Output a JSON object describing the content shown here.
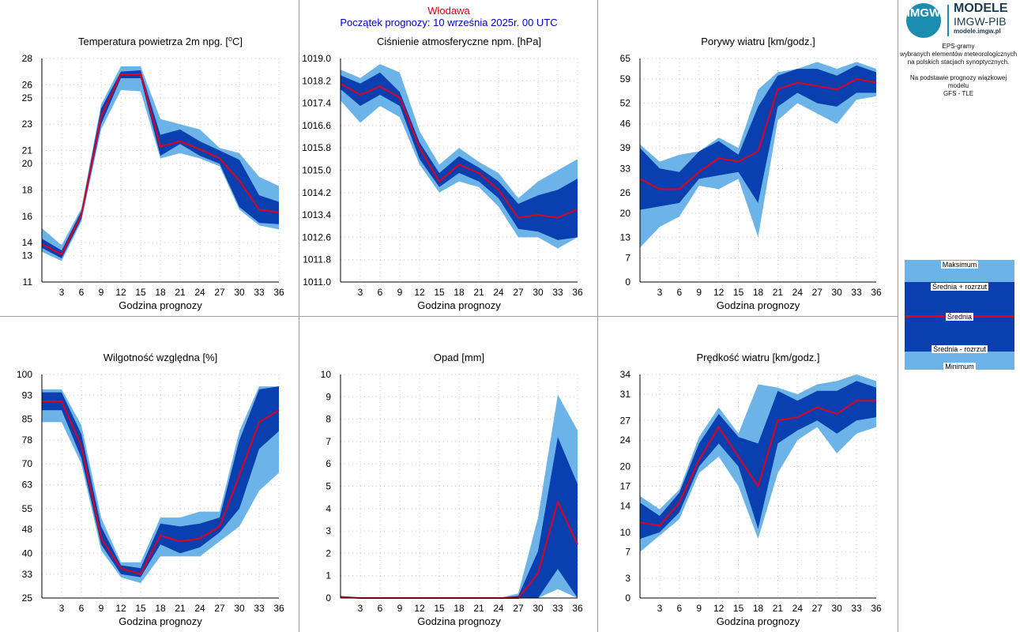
{
  "header": {
    "station": "Włodawa",
    "subtitle": "Początek prognozy: 10 września 2025r. 00 UTC"
  },
  "brand": {
    "logo_text": "IMGW",
    "title": "MODELE",
    "subtitle": "IMGW-PIB",
    "url": "modele.imgw.pl"
  },
  "description": {
    "line1": "EPS-gramy",
    "line2": "wybranych elementów meteorologicznych",
    "line3": "na polskich stacjach  synoptycznych.",
    "line4": "Na podstawie prognozy wiązkowej modelu",
    "line5": "GFS - TLE"
  },
  "legend": {
    "max": "Maksimum",
    "mean_plus": "Średnia + rozrzut",
    "mean": "Średnia",
    "mean_minus": "Średnia - rozrzut",
    "min": "Minimum"
  },
  "colors": {
    "outer_band": "#6cb4e8",
    "inner_band": "#0a3fb0",
    "mean_line": "#e0001b",
    "grid": "#c8c8c8"
  },
  "chart_data": [
    {
      "type": "area",
      "title": "Temperatura powietrza 2m npg. [oC]",
      "xlabel": "Godzina prognozy",
      "x": [
        0,
        3,
        6,
        9,
        12,
        15,
        18,
        21,
        24,
        27,
        30,
        33,
        36
      ],
      "xticks": [
        3,
        6,
        9,
        12,
        15,
        18,
        21,
        24,
        27,
        30,
        33,
        36
      ],
      "ylim": [
        11,
        28
      ],
      "yticks": [
        "11",
        "13",
        "14",
        "16",
        "18",
        "20",
        "21",
        "23",
        "25",
        "26",
        "28"
      ],
      "series": {
        "min": [
          13.3,
          12.6,
          15.6,
          22.6,
          25.6,
          25.5,
          20.4,
          20.8,
          20.4,
          19.8,
          16.5,
          15.3,
          15.0
        ],
        "mean_minus": [
          13.6,
          12.8,
          15.8,
          23.0,
          26.5,
          26.5,
          20.6,
          21.5,
          20.6,
          20.0,
          16.7,
          15.5,
          15.4
        ],
        "mean": [
          13.9,
          13.1,
          16.1,
          23.6,
          26.8,
          26.8,
          21.3,
          21.7,
          21.1,
          20.4,
          18.7,
          16.5,
          16.3
        ],
        "mean_plus": [
          14.3,
          13.4,
          16.4,
          24.2,
          27.0,
          27.1,
          22.2,
          22.6,
          21.7,
          21.0,
          20.3,
          17.6,
          17.1
        ],
        "max": [
          15.1,
          13.8,
          16.6,
          24.5,
          27.4,
          27.4,
          23.4,
          23.0,
          22.6,
          21.2,
          20.8,
          19.0,
          18.3
        ]
      }
    },
    {
      "type": "area",
      "title": "Ciśnienie atmosferyczne npm. [hPa]",
      "xlabel": "Godzina prognozy",
      "x": [
        0,
        3,
        6,
        9,
        12,
        15,
        18,
        21,
        24,
        27,
        30,
        33,
        36
      ],
      "xticks": [
        3,
        6,
        9,
        12,
        15,
        18,
        21,
        24,
        27,
        30,
        33,
        36
      ],
      "ylim": [
        1011.0,
        1019.0
      ],
      "yticks": [
        "1011.0",
        "1011.8",
        "1012.6",
        "1013.4",
        "1014.2",
        "1015.0",
        "1015.8",
        "1016.6",
        "1017.4",
        "1018.2",
        "1019.0"
      ],
      "series": {
        "min": [
          1017.5,
          1016.7,
          1017.3,
          1016.9,
          1015.2,
          1014.2,
          1014.6,
          1014.4,
          1013.7,
          1012.6,
          1012.6,
          1012.2,
          1012.6
        ],
        "mean_minus": [
          1017.9,
          1017.3,
          1017.7,
          1017.3,
          1015.4,
          1014.4,
          1014.9,
          1014.6,
          1014.0,
          1012.9,
          1012.8,
          1012.5,
          1012.6
        ],
        "mean": [
          1018.1,
          1017.7,
          1018.0,
          1017.6,
          1015.8,
          1014.6,
          1015.2,
          1014.9,
          1014.3,
          1013.3,
          1013.4,
          1013.3,
          1013.6
        ],
        "mean_plus": [
          1018.4,
          1018.1,
          1018.5,
          1017.8,
          1016.0,
          1014.9,
          1015.5,
          1015.1,
          1014.6,
          1013.8,
          1014.1,
          1014.3,
          1014.7
        ],
        "max": [
          1018.6,
          1018.3,
          1018.8,
          1018.5,
          1016.4,
          1015.2,
          1015.8,
          1015.3,
          1014.9,
          1014.0,
          1014.6,
          1015.0,
          1015.4
        ]
      }
    },
    {
      "type": "area",
      "title": "Porywy wiatru [km/godz.]",
      "xlabel": "Godzina prognozy",
      "x": [
        0,
        3,
        6,
        9,
        12,
        15,
        18,
        21,
        24,
        27,
        30,
        33,
        36
      ],
      "xticks": [
        3,
        6,
        9,
        12,
        15,
        18,
        21,
        24,
        27,
        30,
        33,
        36
      ],
      "ylim": [
        0,
        65
      ],
      "yticks": [
        "0",
        "7",
        "13",
        "20",
        "26",
        "33",
        "39",
        "46",
        "52",
        "59",
        "65"
      ],
      "series": {
        "min": [
          10,
          16,
          19,
          28,
          27,
          30,
          13,
          47,
          52,
          49,
          46,
          53,
          54
        ],
        "mean_minus": [
          21,
          22,
          23,
          30,
          31,
          32,
          23,
          51,
          55,
          52,
          51,
          55,
          55
        ],
        "mean": [
          30,
          27,
          27,
          32,
          36,
          35,
          38,
          56,
          58,
          57,
          56,
          59,
          58
        ],
        "mean_plus": [
          39,
          33,
          32,
          38,
          41,
          37,
          51,
          60,
          62,
          62,
          60,
          63,
          61
        ],
        "max": [
          40,
          35,
          37,
          38,
          42,
          39,
          56,
          61,
          62,
          64,
          62,
          64,
          62
        ]
      }
    },
    {
      "type": "area",
      "title": "Wilgotność względna [%]",
      "xlabel": "Godzina prognozy",
      "x": [
        0,
        3,
        6,
        9,
        12,
        15,
        18,
        21,
        24,
        27,
        30,
        33,
        36
      ],
      "xticks": [
        3,
        6,
        9,
        12,
        15,
        18,
        21,
        24,
        27,
        30,
        33,
        36
      ],
      "ylim": [
        25,
        100
      ],
      "yticks": [
        "25",
        "33",
        "40",
        "48",
        "55",
        "63",
        "70",
        "78",
        "85",
        "93",
        "100"
      ],
      "series": {
        "min": [
          84,
          84,
          70,
          41,
          32,
          30,
          39,
          39,
          39,
          44,
          49,
          61,
          67
        ],
        "mean_minus": [
          88,
          88,
          72,
          43,
          33,
          32,
          43,
          40,
          42,
          47,
          55,
          75,
          81
        ],
        "mean": [
          91,
          91,
          76,
          45,
          35,
          33,
          46,
          44,
          45,
          49,
          66,
          84,
          88
        ],
        "mean_plus": [
          94,
          94,
          80,
          49,
          36,
          35,
          50,
          49,
          50,
          52,
          78,
          95,
          96
        ],
        "max": [
          95,
          95,
          83,
          52,
          37,
          37,
          52,
          52,
          54,
          54,
          81,
          96,
          96
        ]
      }
    },
    {
      "type": "area",
      "title": "Opad [mm]",
      "xlabel": "Godzina prognozy",
      "x": [
        0,
        3,
        6,
        9,
        12,
        15,
        18,
        21,
        24,
        27,
        30,
        33,
        36
      ],
      "xticks": [
        3,
        6,
        9,
        12,
        15,
        18,
        21,
        24,
        27,
        30,
        33,
        36
      ],
      "ylim": [
        0,
        10
      ],
      "yticks": [
        "0",
        "1",
        "2",
        "3",
        "4",
        "5",
        "6",
        "7",
        "8",
        "9",
        "10"
      ],
      "series": {
        "min": [
          0,
          0,
          0,
          0,
          0,
          0,
          0,
          0,
          0,
          0,
          0,
          0.4,
          0
        ],
        "mean_minus": [
          0,
          0,
          0,
          0,
          0,
          0,
          0,
          0,
          0,
          0,
          0,
          1.3,
          0
        ],
        "mean": [
          0.05,
          0,
          0,
          0,
          0,
          0,
          0,
          0,
          0,
          0,
          1.1,
          4.3,
          2.4
        ],
        "mean_plus": [
          0.05,
          0,
          0,
          0,
          0,
          0,
          0,
          0,
          0,
          0.1,
          2.1,
          7.2,
          5.1
        ],
        "max": [
          0.1,
          0,
          0,
          0,
          0,
          0,
          0,
          0,
          0,
          0.2,
          3.6,
          9.1,
          7.5
        ]
      }
    },
    {
      "type": "area",
      "title": "Prędkość wiatru [km/godz.]",
      "xlabel": "Godzina prognozy",
      "x": [
        0,
        3,
        6,
        9,
        12,
        15,
        18,
        21,
        24,
        27,
        30,
        33,
        36
      ],
      "xticks": [
        3,
        6,
        9,
        12,
        15,
        18,
        21,
        24,
        27,
        30,
        33,
        36
      ],
      "ylim": [
        0,
        34
      ],
      "yticks": [
        "0",
        "3",
        "7",
        "10",
        "14",
        "17",
        "20",
        "24",
        "27",
        "31",
        "34"
      ],
      "series": {
        "min": [
          7,
          9.5,
          12,
          19,
          21.5,
          17,
          9,
          19,
          24,
          26,
          22,
          25,
          26
        ],
        "mean_minus": [
          9,
          10,
          13,
          20,
          23.5,
          20,
          10.5,
          23.5,
          25.5,
          27,
          25,
          27,
          27.5
        ],
        "mean": [
          11.5,
          11,
          14.5,
          21,
          26,
          21.5,
          17,
          27,
          27.5,
          29,
          28,
          30,
          30
        ],
        "mean_plus": [
          14.5,
          12.5,
          16,
          23.5,
          28,
          24.5,
          23.5,
          31.5,
          30,
          31.5,
          31.5,
          33,
          32
        ],
        "max": [
          15.5,
          13.5,
          16.5,
          24.5,
          29,
          25,
          32.5,
          32,
          31,
          32.5,
          33,
          34,
          33
        ]
      }
    }
  ]
}
